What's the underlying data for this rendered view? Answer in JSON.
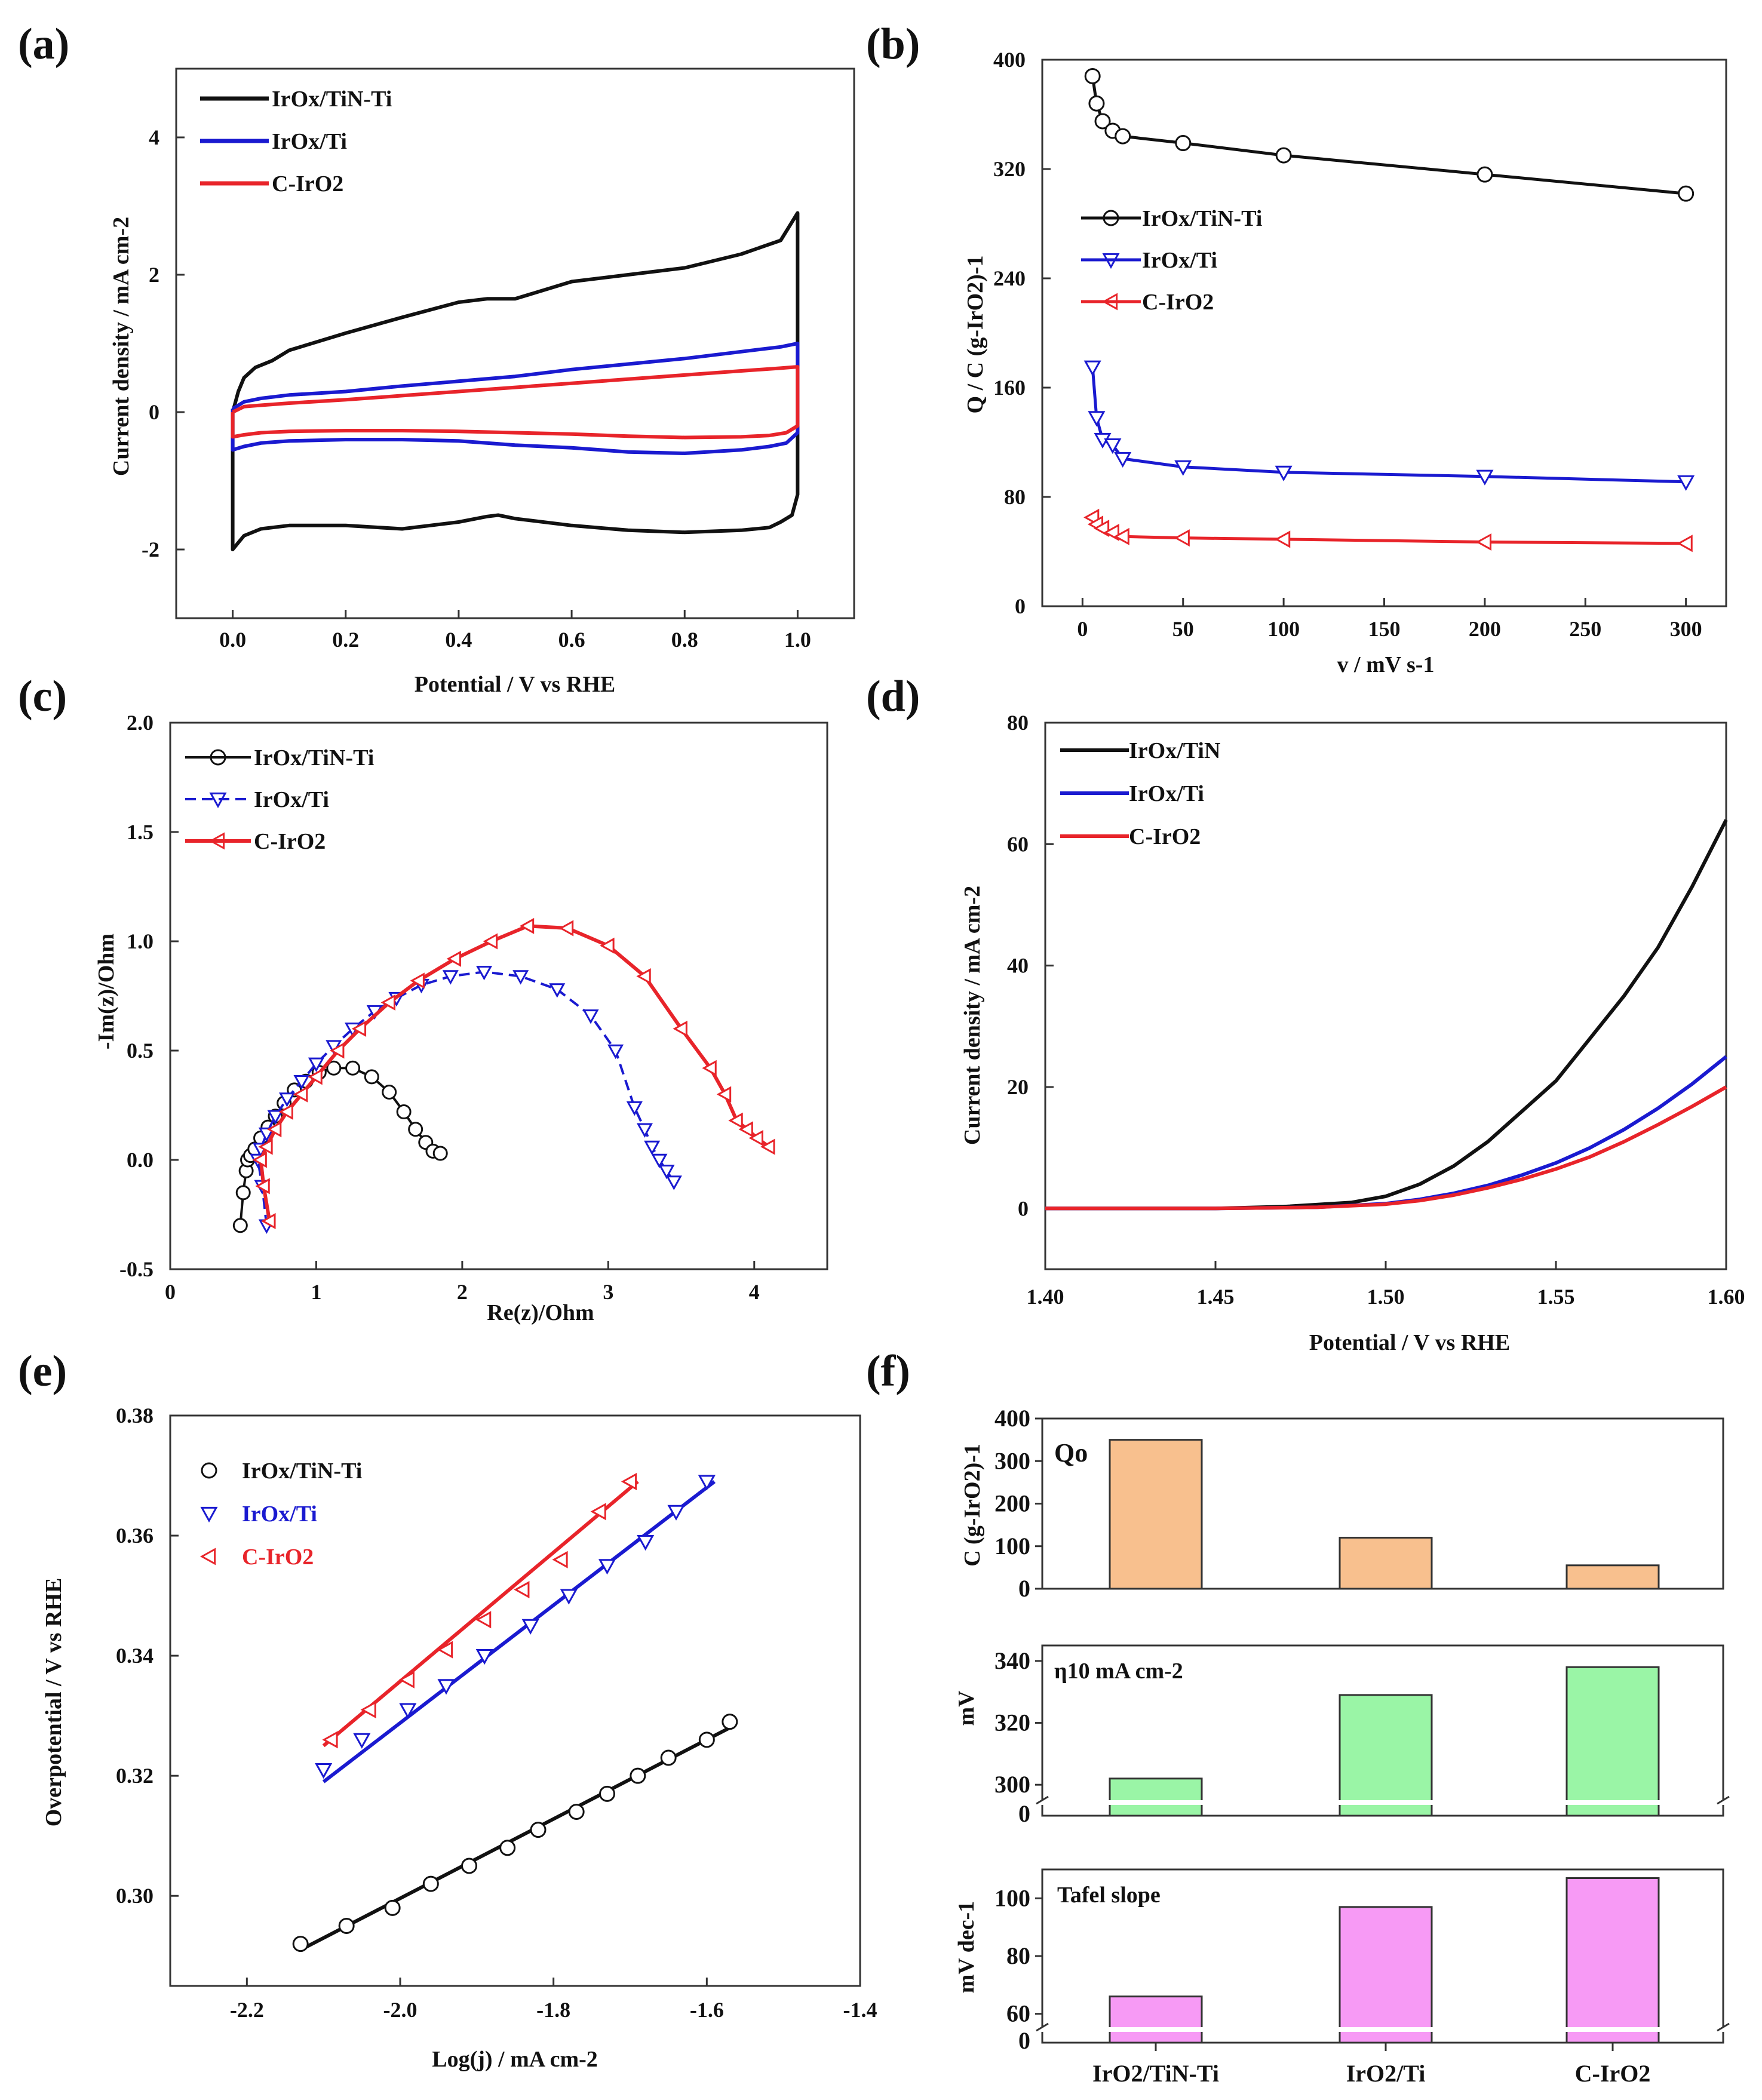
{
  "figure": {
    "colors": {
      "black": "#111111",
      "blue": "#1a1ad0",
      "red": "#e8242a",
      "orange": "#f8c08e",
      "green": "#9af5a6",
      "pink": "#f79af5"
    }
  },
  "chart_data": [
    {
      "panel": "(a)",
      "type": "line",
      "xlabel": "Potential / V vs RHE",
      "ylabel": "Current density / mA cm-2",
      "xlim": [
        -0.1,
        1.1
      ],
      "ylim": [
        -3,
        5
      ],
      "xticks": [
        0.0,
        0.2,
        0.4,
        0.6,
        0.8,
        1.0
      ],
      "xtick_labels": [
        "0.0",
        "0.2",
        "0.4",
        "0.6",
        "0.8",
        "1.0"
      ],
      "yticks": [
        -2,
        0,
        2,
        4
      ],
      "ytick_labels": [
        "-2",
        "0",
        "2",
        "4"
      ],
      "series": [
        {
          "name": "IrOx/TiN-Ti",
          "color": "#111111",
          "x": [
            0.0,
            0.01,
            0.02,
            0.04,
            0.07,
            0.1,
            0.2,
            0.3,
            0.4,
            0.45,
            0.5,
            0.6,
            0.7,
            0.8,
            0.9,
            0.97,
            1.0,
            1.0,
            0.99,
            0.97,
            0.95,
            0.9,
            0.8,
            0.7,
            0.6,
            0.5,
            0.47,
            0.45,
            0.4,
            0.3,
            0.2,
            0.1,
            0.05,
            0.02,
            0.01,
            0.0,
            0.0
          ],
          "y": [
            0.0,
            0.3,
            0.5,
            0.65,
            0.75,
            0.9,
            1.15,
            1.38,
            1.6,
            1.65,
            1.65,
            1.9,
            2.0,
            2.1,
            2.3,
            2.5,
            2.9,
            -1.2,
            -1.5,
            -1.6,
            -1.68,
            -1.72,
            -1.75,
            -1.72,
            -1.65,
            -1.55,
            -1.5,
            -1.52,
            -1.6,
            -1.7,
            -1.65,
            -1.65,
            -1.7,
            -1.8,
            -1.9,
            -2.0,
            0.0
          ]
        },
        {
          "name": "IrOx/Ti",
          "color": "#1a1ad0",
          "x": [
            0.0,
            0.02,
            0.05,
            0.1,
            0.2,
            0.3,
            0.4,
            0.5,
            0.6,
            0.7,
            0.8,
            0.9,
            0.97,
            1.0,
            1.0,
            0.98,
            0.95,
            0.9,
            0.8,
            0.7,
            0.6,
            0.5,
            0.4,
            0.3,
            0.2,
            0.1,
            0.05,
            0.02,
            0.0,
            0.0
          ],
          "y": [
            0.05,
            0.15,
            0.2,
            0.25,
            0.3,
            0.38,
            0.45,
            0.52,
            0.62,
            0.7,
            0.78,
            0.88,
            0.95,
            1.0,
            -0.3,
            -0.45,
            -0.5,
            -0.55,
            -0.6,
            -0.58,
            -0.52,
            -0.48,
            -0.42,
            -0.4,
            -0.4,
            -0.42,
            -0.45,
            -0.5,
            -0.55,
            0.05
          ]
        },
        {
          "name": "C-IrO2",
          "color": "#e8242a",
          "x": [
            0.0,
            0.02,
            0.05,
            0.1,
            0.2,
            0.3,
            0.4,
            0.5,
            0.6,
            0.7,
            0.8,
            0.9,
            0.97,
            1.0,
            1.0,
            0.98,
            0.95,
            0.9,
            0.8,
            0.7,
            0.6,
            0.5,
            0.4,
            0.3,
            0.2,
            0.1,
            0.05,
            0.02,
            0.0,
            0.0
          ],
          "y": [
            0.0,
            0.08,
            0.1,
            0.13,
            0.18,
            0.24,
            0.3,
            0.36,
            0.42,
            0.48,
            0.54,
            0.6,
            0.64,
            0.66,
            -0.2,
            -0.3,
            -0.34,
            -0.36,
            -0.37,
            -0.35,
            -0.32,
            -0.3,
            -0.28,
            -0.27,
            -0.27,
            -0.28,
            -0.3,
            -0.33,
            -0.36,
            0.0
          ]
        }
      ]
    },
    {
      "panel": "(b)",
      "type": "line",
      "xlabel": "v / mV s-1",
      "ylabel": "Q / C (g-IrO2)-1",
      "xlim": [
        -20,
        320
      ],
      "ylim": [
        0,
        400
      ],
      "xticks": [
        0,
        50,
        100,
        150,
        200,
        250,
        300
      ],
      "xtick_labels": [
        "0",
        "50",
        "100",
        "150",
        "200",
        "250",
        "300"
      ],
      "yticks": [
        0,
        80,
        160,
        240,
        320,
        400
      ],
      "ytick_labels": [
        "0",
        "80",
        "160",
        "240",
        "320",
        "400"
      ],
      "series": [
        {
          "name": "IrOx/TiN-Ti",
          "color": "#111111",
          "marker": "circle",
          "x": [
            5,
            7,
            10,
            15,
            20,
            50,
            100,
            200,
            300
          ],
          "y": [
            388,
            368,
            355,
            348,
            344,
            339,
            330,
            316,
            302
          ]
        },
        {
          "name": "IrOx/Ti",
          "color": "#1a1ad0",
          "marker": "triangle-down",
          "x": [
            5,
            7,
            10,
            15,
            20,
            50,
            100,
            200,
            300
          ],
          "y": [
            175,
            138,
            122,
            118,
            108,
            102,
            98,
            95,
            91
          ]
        },
        {
          "name": "C-IrO2",
          "color": "#e8242a",
          "marker": "triangle-left",
          "x": [
            5,
            7,
            10,
            15,
            20,
            50,
            100,
            200,
            300
          ],
          "y": [
            65,
            60,
            57,
            54,
            51,
            50,
            49,
            47,
            46
          ]
        }
      ]
    },
    {
      "panel": "(c)",
      "type": "scatter",
      "xlabel": "Re(z)/Ohm",
      "ylabel": "-Im(z)/Ohm",
      "xlim": [
        0,
        4.5
      ],
      "ylim": [
        -0.5,
        2.0
      ],
      "xticks": [
        0,
        1,
        2,
        3,
        4
      ],
      "xtick_labels": [
        "0",
        "1",
        "2",
        "3",
        "4"
      ],
      "yticks": [
        -0.5,
        0.0,
        0.5,
        1.0,
        1.5,
        2.0
      ],
      "ytick_labels": [
        "-0.5",
        "0.0",
        "0.5",
        "1.0",
        "1.5",
        "2.0"
      ],
      "series": [
        {
          "name": "IrOx/TiN-Ti",
          "color": "#111111",
          "marker": "circle",
          "x": [
            0.48,
            0.5,
            0.52,
            0.53,
            0.55,
            0.58,
            0.62,
            0.67,
            0.72,
            0.78,
            0.85,
            0.93,
            1.02,
            1.12,
            1.25,
            1.38,
            1.5,
            1.6,
            1.68,
            1.75,
            1.8,
            1.85
          ],
          "y": [
            -0.3,
            -0.15,
            -0.05,
            0.0,
            0.02,
            0.05,
            0.1,
            0.15,
            0.2,
            0.26,
            0.32,
            0.36,
            0.4,
            0.42,
            0.42,
            0.38,
            0.31,
            0.22,
            0.14,
            0.08,
            0.04,
            0.03
          ]
        },
        {
          "name": "IrOx/Ti",
          "color": "#1a1ad0",
          "marker": "triangle-down",
          "x": [
            0.66,
            0.63,
            0.6,
            0.62,
            0.66,
            0.72,
            0.8,
            0.9,
            1.0,
            1.12,
            1.25,
            1.4,
            1.55,
            1.72,
            1.92,
            2.15,
            2.4,
            2.65,
            2.88,
            3.05,
            3.18,
            3.25,
            3.3,
            3.35,
            3.4,
            3.45
          ],
          "y": [
            -0.3,
            -0.12,
            0.0,
            0.05,
            0.12,
            0.2,
            0.28,
            0.36,
            0.44,
            0.52,
            0.6,
            0.68,
            0.74,
            0.8,
            0.84,
            0.86,
            0.84,
            0.78,
            0.66,
            0.5,
            0.24,
            0.14,
            0.06,
            0.0,
            -0.05,
            -0.1
          ]
        },
        {
          "name": "C-IrO2",
          "color": "#e8242a",
          "marker": "triangle-left",
          "x": [
            0.68,
            0.64,
            0.62,
            0.66,
            0.72,
            0.8,
            0.9,
            1.0,
            1.15,
            1.3,
            1.5,
            1.7,
            1.95,
            2.2,
            2.45,
            2.72,
            3.0,
            3.25,
            3.5,
            3.7,
            3.8,
            3.88,
            3.95,
            4.02,
            4.1
          ],
          "y": [
            -0.28,
            -0.12,
            0.0,
            0.06,
            0.14,
            0.22,
            0.3,
            0.38,
            0.5,
            0.6,
            0.72,
            0.82,
            0.92,
            1.0,
            1.07,
            1.06,
            0.98,
            0.84,
            0.6,
            0.42,
            0.3,
            0.18,
            0.14,
            0.1,
            0.06
          ]
        }
      ]
    },
    {
      "panel": "(d)",
      "type": "line",
      "xlabel": "Potential / V vs RHE",
      "ylabel": "Current density / mA cm-2",
      "xlim": [
        1.4,
        1.6
      ],
      "ylim": [
        -10,
        80
      ],
      "xticks": [
        1.4,
        1.45,
        1.5,
        1.55,
        1.6
      ],
      "xtick_labels": [
        "1.40",
        "1.45",
        "1.50",
        "1.55",
        "1.60"
      ],
      "yticks": [
        0,
        20,
        40,
        60,
        80
      ],
      "ytick_labels": [
        "0",
        "20",
        "40",
        "60",
        "80"
      ],
      "series": [
        {
          "name": "IrOx/TiN",
          "color": "#111111",
          "x": [
            1.4,
            1.45,
            1.47,
            1.49,
            1.5,
            1.51,
            1.52,
            1.53,
            1.54,
            1.55,
            1.56,
            1.57,
            1.58,
            1.59,
            1.6
          ],
          "y": [
            0,
            0,
            0.3,
            1.0,
            2.0,
            4.0,
            7.0,
            11.0,
            16.0,
            21.0,
            28.0,
            35.0,
            43.0,
            53.0,
            64.0
          ]
        },
        {
          "name": "IrOx/Ti",
          "color": "#1a1ad0",
          "x": [
            1.4,
            1.45,
            1.48,
            1.5,
            1.51,
            1.52,
            1.53,
            1.54,
            1.55,
            1.56,
            1.57,
            1.58,
            1.59,
            1.6
          ],
          "y": [
            0,
            0,
            0.2,
            0.8,
            1.5,
            2.5,
            3.8,
            5.5,
            7.5,
            10.0,
            13.0,
            16.5,
            20.5,
            25.0
          ]
        },
        {
          "name": "C-IrO2",
          "color": "#e8242a",
          "x": [
            1.4,
            1.45,
            1.48,
            1.5,
            1.51,
            1.52,
            1.53,
            1.54,
            1.55,
            1.56,
            1.57,
            1.58,
            1.59,
            1.6
          ],
          "y": [
            0,
            0,
            0.2,
            0.7,
            1.3,
            2.2,
            3.4,
            4.8,
            6.5,
            8.5,
            11.0,
            13.8,
            16.8,
            20.0
          ]
        }
      ]
    },
    {
      "panel": "(e)",
      "type": "scatter",
      "xlabel": "Log(j) / mA cm-2",
      "ylabel": "Overpotential / V vs RHE",
      "xlim": [
        -2.3,
        -1.4
      ],
      "ylim": [
        0.285,
        0.38
      ],
      "xticks": [
        -2.2,
        -2.0,
        -1.8,
        -1.6,
        -1.4
      ],
      "xtick_labels": [
        "-2.2",
        "-2.0",
        "-1.8",
        "-1.6",
        "-1.4"
      ],
      "yticks": [
        0.3,
        0.32,
        0.34,
        0.36,
        0.38
      ],
      "ytick_labels": [
        "0.30",
        "0.32",
        "0.34",
        "0.36",
        "0.38"
      ],
      "series": [
        {
          "name": "IrOx/TiN-Ti",
          "color": "#111111",
          "marker": "circle",
          "x": [
            -2.13,
            -2.07,
            -2.01,
            -1.96,
            -1.91,
            -1.86,
            -1.82,
            -1.77,
            -1.73,
            -1.69,
            -1.65,
            -1.6,
            -1.57
          ],
          "y": [
            0.292,
            0.295,
            0.298,
            0.302,
            0.305,
            0.308,
            0.311,
            0.314,
            0.317,
            0.32,
            0.323,
            0.326,
            0.329
          ],
          "fit": [
            [
              -2.13,
              0.291
            ],
            [
              -1.57,
              0.328
            ]
          ]
        },
        {
          "name": "IrOx/Ti",
          "color": "#1a1ad0",
          "marker": "triangle-down",
          "x": [
            -2.1,
            -2.05,
            -1.99,
            -1.94,
            -1.89,
            -1.83,
            -1.78,
            -1.73,
            -1.68,
            -1.64,
            -1.6
          ],
          "y": [
            0.321,
            0.326,
            0.331,
            0.335,
            0.34,
            0.345,
            0.35,
            0.355,
            0.359,
            0.364,
            0.369
          ],
          "fit": [
            [
              -2.1,
              0.319
            ],
            [
              -1.59,
              0.369
            ]
          ]
        },
        {
          "name": "C-IrO2",
          "color": "#e8242a",
          "marker": "triangle-left",
          "x": [
            -2.09,
            -2.04,
            -1.99,
            -1.94,
            -1.89,
            -1.84,
            -1.79,
            -1.74,
            -1.7
          ],
          "y": [
            0.326,
            0.331,
            0.336,
            0.341,
            0.346,
            0.351,
            0.356,
            0.364,
            0.369
          ],
          "fit": [
            [
              -2.1,
              0.325
            ],
            [
              -1.69,
              0.369
            ]
          ]
        }
      ]
    },
    {
      "panel": "(f)",
      "type": "bar",
      "categories": [
        "IrO2/TiN-Ti",
        "IrO2/Ti",
        "C-IrO2"
      ],
      "subplots": [
        {
          "label": "Qo",
          "ylabel": "C (g-IrO2)-1",
          "values": [
            350,
            120,
            55
          ],
          "ylim": [
            0,
            400
          ],
          "yticks": [
            0,
            100,
            200,
            300,
            400
          ],
          "ytick_labels": [
            "0",
            "100",
            "200",
            "300",
            "400"
          ],
          "color": "#f8c08e",
          "broken": false
        },
        {
          "label": "η10 mA cm-2",
          "ylabel": "mV",
          "values": [
            302,
            329,
            338
          ],
          "ylim": [
            290,
            345
          ],
          "yticks": [
            300,
            320,
            340
          ],
          "ytick_labels": [
            "300",
            "320",
            "340"
          ],
          "zero_label": "0",
          "color": "#9af5a6",
          "broken": true
        },
        {
          "label": "Tafel slope",
          "ylabel": "mV dec-1",
          "values": [
            66,
            97,
            107
          ],
          "ylim": [
            50,
            110
          ],
          "yticks": [
            60,
            80,
            100
          ],
          "ytick_labels": [
            "60",
            "80",
            "100"
          ],
          "zero_label": "0",
          "color": "#f79af5",
          "broken": true
        }
      ]
    }
  ]
}
